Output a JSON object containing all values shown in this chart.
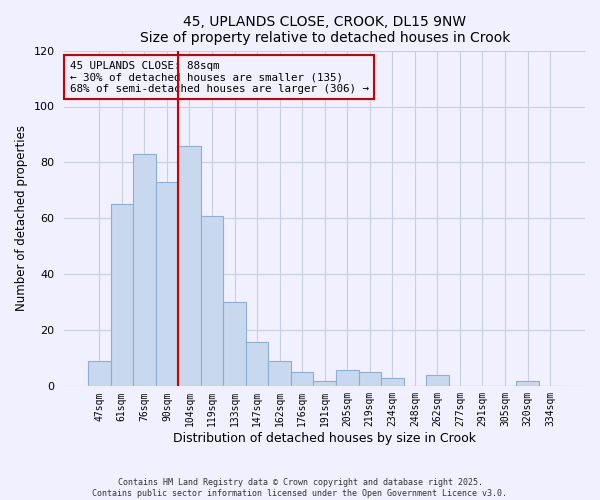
{
  "title": "45, UPLANDS CLOSE, CROOK, DL15 9NW",
  "subtitle": "Size of property relative to detached houses in Crook",
  "xlabel": "Distribution of detached houses by size in Crook",
  "ylabel": "Number of detached properties",
  "bar_labels": [
    "47sqm",
    "61sqm",
    "76sqm",
    "90sqm",
    "104sqm",
    "119sqm",
    "133sqm",
    "147sqm",
    "162sqm",
    "176sqm",
    "191sqm",
    "205sqm",
    "219sqm",
    "234sqm",
    "248sqm",
    "262sqm",
    "277sqm",
    "291sqm",
    "305sqm",
    "320sqm",
    "334sqm"
  ],
  "bar_values": [
    9,
    65,
    83,
    73,
    86,
    61,
    30,
    16,
    9,
    5,
    2,
    6,
    5,
    3,
    0,
    4,
    0,
    0,
    0,
    2,
    0
  ],
  "bar_color": "#c8d8ee",
  "bar_edge_color": "#8ab0d8",
  "vline_color": "#cc0000",
  "vline_index": 3,
  "ylim": [
    0,
    120
  ],
  "yticks": [
    0,
    20,
    40,
    60,
    80,
    100,
    120
  ],
  "annotation_text_line1": "45 UPLANDS CLOSE: 88sqm",
  "annotation_text_line2": "← 30% of detached houses are smaller (135)",
  "annotation_text_line3": "68% of semi-detached houses are larger (306) →",
  "footer_line1": "Contains HM Land Registry data © Crown copyright and database right 2025.",
  "footer_line2": "Contains public sector information licensed under the Open Government Licence v3.0.",
  "bg_color": "#f0f0ff",
  "grid_color": "#c8d0e0"
}
